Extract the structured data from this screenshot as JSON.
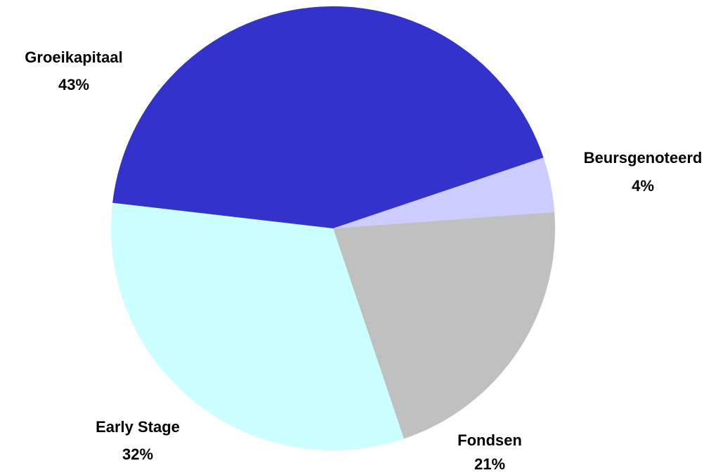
{
  "chart_data": {
    "type": "pie",
    "categories": [
      "Beursgenoteerd",
      "Fondsen",
      "Early Stage",
      "Groeikapitaal"
    ],
    "values": [
      4,
      21,
      32,
      43
    ],
    "value_labels": [
      "4%",
      "21%",
      "32%",
      "43%"
    ],
    "colors": [
      "#ccccff",
      "#c0c0c0",
      "#ccffff",
      "#3333cc"
    ]
  }
}
